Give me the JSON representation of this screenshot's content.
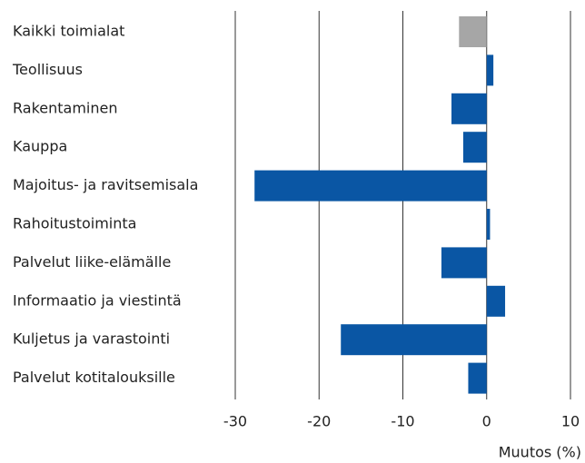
{
  "chart_data": {
    "type": "hbar",
    "categories": [
      "Kaikki toimialat",
      "Teollisuus",
      "Rakentaminen",
      "Kauppa",
      "Majoitus- ja ravitsemisala",
      "Rahoitustoiminta",
      "Palvelut liike-elämälle",
      "Informaatio ja viestintä",
      "Kuljetus ja varastointi",
      "Palvelut kotitalouksille"
    ],
    "values": [
      -3.3,
      0.8,
      -4.2,
      -2.8,
      -27.7,
      0.4,
      -5.4,
      2.2,
      -17.4,
      -2.2
    ],
    "colors": [
      "#a6a6a6",
      "#0a56a4",
      "#0a56a4",
      "#0a56a4",
      "#0a56a4",
      "#0a56a4",
      "#0a56a4",
      "#0a56a4",
      "#0a56a4",
      "#0a56a4"
    ],
    "xlim": [
      -30,
      10
    ],
    "xticks": [
      -30,
      -20,
      -10,
      0,
      10
    ],
    "grid": true,
    "x_label": "Muutos (%)"
  }
}
